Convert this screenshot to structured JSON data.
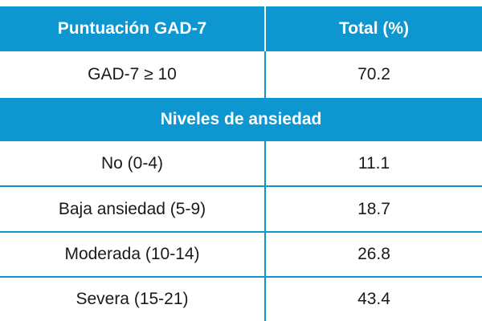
{
  "header": {
    "col1": "Puntuación GAD-7",
    "col2": "Total (%)"
  },
  "summary_row": {
    "label": "GAD-7 ≥ 10",
    "value": "70.2"
  },
  "section_title": "Niveles de ansiedad",
  "rows": [
    {
      "label": "No (0-4)",
      "value": "11.1"
    },
    {
      "label": "Baja ansiedad (5-9)",
      "value": "18.7"
    },
    {
      "label": "Moderada (10-14)",
      "value": "26.8"
    },
    {
      "label": "Severa (15-21)",
      "value": "43.4"
    }
  ],
  "colors": {
    "accent": "#0d96cf",
    "header_text": "#ffffff",
    "body_text": "#1a1a1a"
  }
}
